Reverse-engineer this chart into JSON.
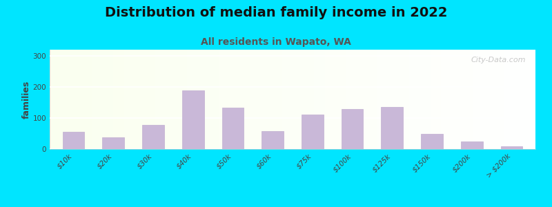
{
  "title": "Distribution of median family income in 2022",
  "subtitle": "All residents in Wapato, WA",
  "ylabel": "families",
  "categories": [
    "$10k",
    "$20k",
    "$30k",
    "$40k",
    "$50k",
    "$60k",
    "$75k",
    "$100k",
    "$125k",
    "$150k",
    "$200k",
    "> $200k"
  ],
  "values": [
    55,
    38,
    78,
    190,
    133,
    58,
    112,
    130,
    135,
    48,
    25,
    10
  ],
  "bar_color": "#c9b8d8",
  "bar_edge_color": "#c0aed0",
  "background_outer": "#00e5ff",
  "title_fontsize": 14,
  "subtitle_fontsize": 10,
  "ylabel_fontsize": 9,
  "tick_fontsize": 7.5,
  "yticks": [
    0,
    100,
    200,
    300
  ],
  "ylim": [
    0,
    320
  ],
  "watermark": "City-Data.com",
  "subtitle_color": "#555555",
  "title_color": "#111111"
}
